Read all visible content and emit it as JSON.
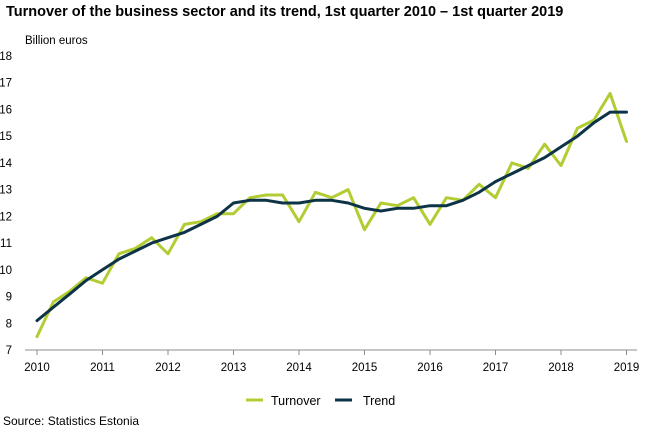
{
  "chart_data": {
    "type": "line",
    "title": "Turnover of the business sector and its trend, 1st quarter 2010 – 1st quarter 2019",
    "ylabel": "Billion euros",
    "source": "Source: Statistics Estonia",
    "ylim": [
      7,
      18
    ],
    "yticks": [
      7,
      8,
      9,
      10,
      11,
      12,
      13,
      14,
      15,
      16,
      17,
      18
    ],
    "xticks": [
      "2010",
      "2011",
      "2012",
      "2013",
      "2014",
      "2015",
      "2016",
      "2017",
      "2018",
      "2019"
    ],
    "x": [
      "2010 Q1",
      "2010 Q2",
      "2010 Q3",
      "2010 Q4",
      "2011 Q1",
      "2011 Q2",
      "2011 Q3",
      "2011 Q4",
      "2012 Q1",
      "2012 Q2",
      "2012 Q3",
      "2012 Q4",
      "2013 Q1",
      "2013 Q2",
      "2013 Q3",
      "2013 Q4",
      "2014 Q1",
      "2014 Q2",
      "2014 Q3",
      "2014 Q4",
      "2015 Q1",
      "2015 Q2",
      "2015 Q3",
      "2015 Q4",
      "2016 Q1",
      "2016 Q2",
      "2016 Q3",
      "2016 Q4",
      "2017 Q1",
      "2017 Q2",
      "2017 Q3",
      "2017 Q4",
      "2018 Q1",
      "2018 Q2",
      "2018 Q3",
      "2018 Q4",
      "2019 Q1"
    ],
    "series": [
      {
        "name": "Turnover",
        "color": "#b2cc33",
        "values": [
          7.5,
          8.8,
          9.2,
          9.7,
          9.5,
          10.6,
          10.8,
          11.2,
          10.6,
          11.7,
          11.8,
          12.1,
          12.1,
          12.7,
          12.8,
          12.8,
          11.8,
          12.9,
          12.7,
          13.0,
          11.5,
          12.5,
          12.4,
          12.7,
          11.7,
          12.7,
          12.6,
          13.2,
          12.7,
          14.0,
          13.8,
          14.7,
          13.9,
          15.3,
          15.6,
          16.6,
          14.8
        ]
      },
      {
        "name": "Trend",
        "color": "#0d3347",
        "values": [
          8.1,
          8.6,
          9.1,
          9.6,
          10.0,
          10.4,
          10.7,
          11.0,
          11.2,
          11.4,
          11.7,
          12.0,
          12.5,
          12.6,
          12.6,
          12.5,
          12.5,
          12.6,
          12.6,
          12.5,
          12.3,
          12.2,
          12.3,
          12.3,
          12.4,
          12.4,
          12.6,
          12.9,
          13.3,
          13.6,
          13.9,
          14.2,
          14.6,
          15.0,
          15.5,
          15.9,
          15.9
        ]
      }
    ],
    "grid": false,
    "legend_position": "bottom"
  }
}
